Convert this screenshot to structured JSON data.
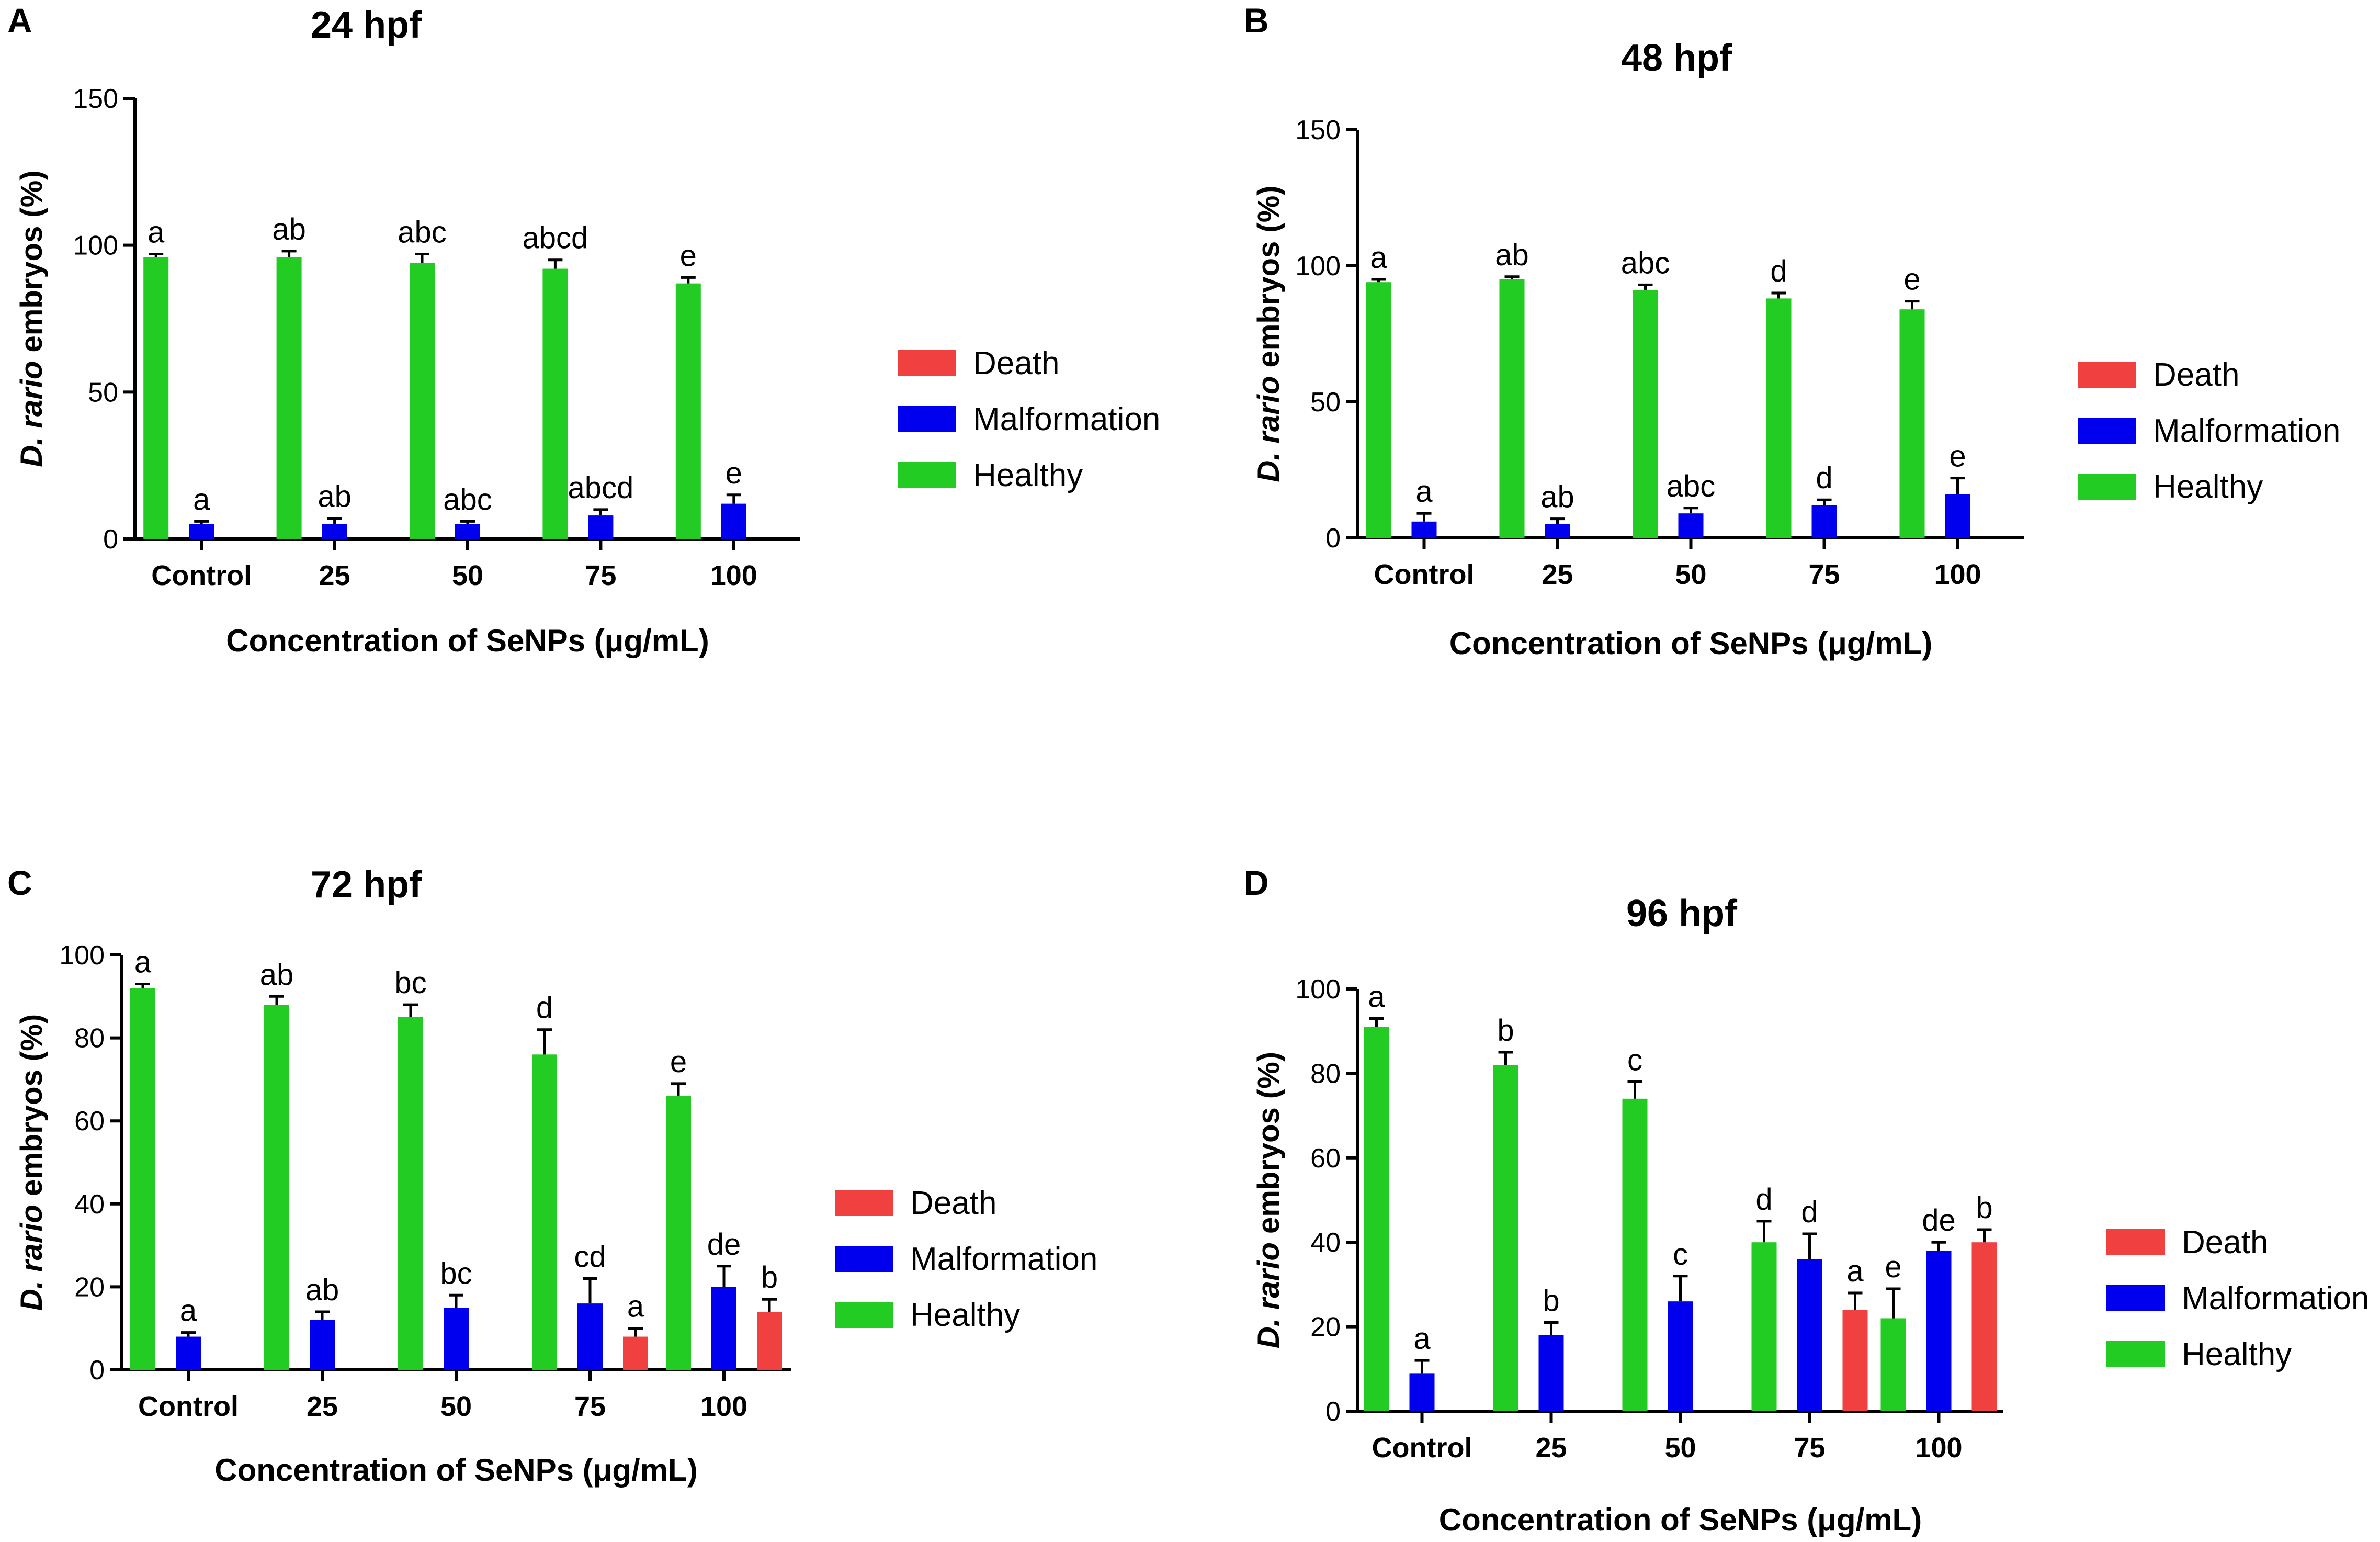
{
  "chart_data": [
    {
      "type": "bar",
      "panel": "A",
      "title": "24 hpf",
      "xlabel": "Concentration of SeNPs (μg/mL)",
      "ylabel_italic": "D. rario",
      "ylabel_rest": " embryos (%)",
      "categories": [
        "Control",
        "25",
        "50",
        "75",
        "100"
      ],
      "ylim": [
        0,
        150
      ],
      "yticks": [
        0,
        50,
        100,
        150
      ],
      "legend": [
        "Death",
        "Malformation",
        "Healthy"
      ],
      "series": [
        {
          "name": "Healthy",
          "color": "#22cc22",
          "values": [
            96,
            96,
            94,
            92,
            87
          ],
          "errors": [
            1,
            2,
            3,
            3,
            2
          ],
          "labels": [
            "a",
            "ab",
            "abc",
            "abcd",
            "e"
          ]
        },
        {
          "name": "Malformation",
          "color": "#0000ee",
          "values": [
            5,
            5,
            5,
            8,
            12
          ],
          "errors": [
            1,
            2,
            1,
            2,
            3
          ],
          "labels": [
            "a",
            "ab",
            "abc",
            "abcd",
            "e"
          ]
        },
        {
          "name": "Death",
          "color": "#f04040",
          "values": [
            0,
            0,
            0,
            0,
            0
          ],
          "errors": [
            0,
            0,
            0,
            0,
            0
          ],
          "labels": [
            "",
            "",
            "",
            "",
            ""
          ]
        }
      ]
    },
    {
      "type": "bar",
      "panel": "B",
      "title": "48 hpf",
      "xlabel": "Concentration of SeNPs (μg/mL)",
      "ylabel_italic": "D. rario",
      "ylabel_rest": " embryos (%)",
      "categories": [
        "Control",
        "25",
        "50",
        "75",
        "100"
      ],
      "ylim": [
        0,
        150
      ],
      "yticks": [
        0,
        50,
        100,
        150
      ],
      "legend": [
        "Death",
        "Malformation",
        "Healthy"
      ],
      "series": [
        {
          "name": "Healthy",
          "color": "#22cc22",
          "values": [
            94,
            95,
            91,
            88,
            84
          ],
          "errors": [
            1,
            1,
            2,
            2,
            3
          ],
          "labels": [
            "a",
            "ab",
            "abc",
            "d",
            "e"
          ]
        },
        {
          "name": "Malformation",
          "color": "#0000ee",
          "values": [
            6,
            5,
            9,
            12,
            16
          ],
          "errors": [
            3,
            2,
            2,
            2,
            6
          ],
          "labels": [
            "a",
            "ab",
            "abc",
            "d",
            "e"
          ]
        },
        {
          "name": "Death",
          "color": "#f04040",
          "values": [
            0,
            0,
            0,
            0,
            0
          ],
          "errors": [
            0,
            0,
            0,
            0,
            0
          ],
          "labels": [
            "",
            "",
            "",
            "",
            ""
          ]
        }
      ]
    },
    {
      "type": "bar",
      "panel": "C",
      "title": "72 hpf",
      "xlabel": "Concentration of SeNPs (μg/mL)",
      "ylabel_italic": "D. rario",
      "ylabel_rest": " embryos (%)",
      "categories": [
        "Control",
        "25",
        "50",
        "75",
        "100"
      ],
      "ylim": [
        0,
        100
      ],
      "yticks": [
        0,
        20,
        40,
        60,
        80,
        100
      ],
      "legend": [
        "Death",
        "Malformation",
        "Healthy"
      ],
      "series": [
        {
          "name": "Healthy",
          "color": "#22cc22",
          "values": [
            92,
            88,
            85,
            76,
            66
          ],
          "errors": [
            1,
            2,
            3,
            6,
            3
          ],
          "labels": [
            "a",
            "ab",
            "bc",
            "d",
            "e"
          ]
        },
        {
          "name": "Malformation",
          "color": "#0000ee",
          "values": [
            8,
            12,
            15,
            16,
            20
          ],
          "errors": [
            1,
            2,
            3,
            6,
            5
          ],
          "labels": [
            "a",
            "ab",
            "bc",
            "cd",
            "de"
          ]
        },
        {
          "name": "Death",
          "color": "#f04040",
          "values": [
            0,
            0,
            0,
            8,
            14
          ],
          "errors": [
            0,
            0,
            0,
            2,
            3
          ],
          "labels": [
            "",
            "",
            "",
            "a",
            "b"
          ]
        }
      ]
    },
    {
      "type": "bar",
      "panel": "D",
      "title": "96 hpf",
      "xlabel": "Concentration of SeNPs (μg/mL)",
      "ylabel_italic": "D. rario",
      "ylabel_rest": " embryos (%)",
      "categories": [
        "Control",
        "25",
        "50",
        "75",
        "100"
      ],
      "ylim": [
        0,
        100
      ],
      "yticks": [
        0,
        20,
        40,
        60,
        80,
        100
      ],
      "legend": [
        "Death",
        "Malformation",
        "Healthy"
      ],
      "series": [
        {
          "name": "Healthy",
          "color": "#22cc22",
          "values": [
            91,
            82,
            74,
            40,
            22
          ],
          "errors": [
            2,
            3,
            4,
            5,
            7
          ],
          "labels": [
            "a",
            "b",
            "c",
            "d",
            "e"
          ]
        },
        {
          "name": "Malformation",
          "color": "#0000ee",
          "values": [
            9,
            18,
            26,
            36,
            38
          ],
          "errors": [
            3,
            3,
            6,
            6,
            2
          ],
          "labels": [
            "a",
            "b",
            "c",
            "d",
            "de"
          ]
        },
        {
          "name": "Death",
          "color": "#f04040",
          "values": [
            0,
            0,
            0,
            24,
            40
          ],
          "errors": [
            0,
            0,
            0,
            4,
            3
          ],
          "labels": [
            "",
            "",
            "",
            "a",
            "b"
          ]
        }
      ]
    }
  ]
}
